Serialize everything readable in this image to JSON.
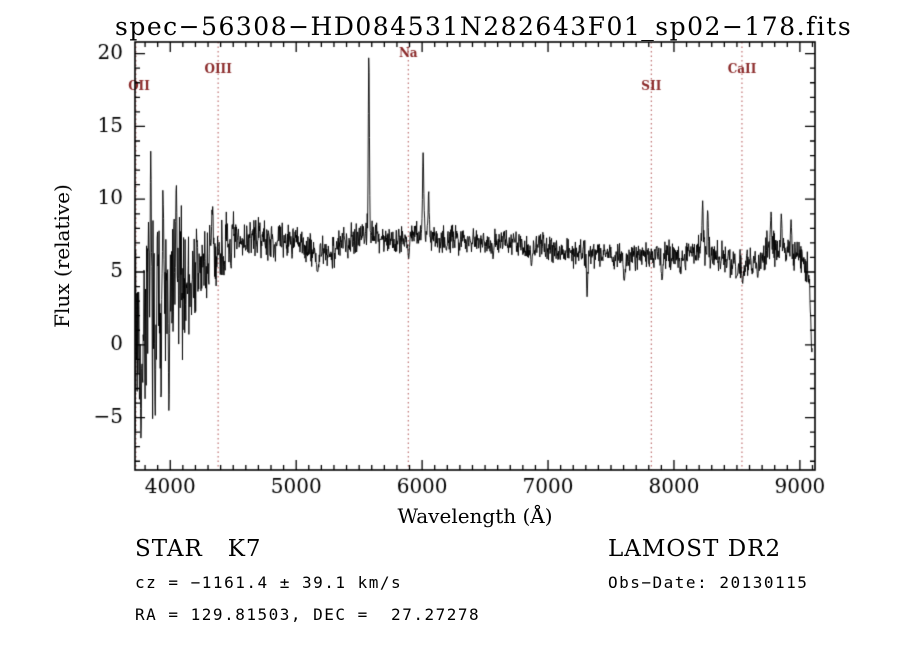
{
  "title": "spec−56308−HD084531N282643F01_sp02−178.fits",
  "annotations": {
    "class_line": "STAR   K7",
    "survey": "LAMOST DR2",
    "cz_line": "cz = −1161.4 ± 39.1 km/s",
    "obs_date": "Obs−Date: 20130115",
    "radec_line": "RA = 129.81503, DEC =  27.27278"
  },
  "chart_data": {
    "type": "line",
    "title": "spec−56308−HD084531N282643F01_sp02−178.fits",
    "xlabel": "Wavelength (Å)",
    "ylabel": "Flux (relative)",
    "xlim": [
      3720,
      9120
    ],
    "ylim": [
      -8.6,
      20.8
    ],
    "xticks": [
      4000,
      5000,
      6000,
      7000,
      8000,
      9000
    ],
    "yticks": [
      -5,
      0,
      5,
      10,
      15,
      20
    ],
    "x_minor_step": 100,
    "y_minor_step": 1,
    "grid": false,
    "line_color": "#000000",
    "axis_color": "#000000",
    "marker_line_color": "#b05050",
    "marker_label_color": "#8b2a2a",
    "marker_lines": [
      {
        "label": "OII",
        "wavelength": 3727,
        "label_flux": 17.5
      },
      {
        "label": "OIII",
        "wavelength": 4380,
        "label_flux": 18.7
      },
      {
        "label": "Na",
        "wavelength": 5890,
        "label_flux": 19.8
      },
      {
        "label": "SII",
        "wavelength": 7820,
        "label_flux": 17.5
      },
      {
        "label": "CaII",
        "wavelength": 8540,
        "label_flux": 18.7
      }
    ],
    "continuum": [
      [
        3720,
        1.2
      ],
      [
        3780,
        1.8
      ],
      [
        3850,
        2.4
      ],
      [
        3950,
        3.0
      ],
      [
        4050,
        3.8
      ],
      [
        4150,
        4.4
      ],
      [
        4250,
        5.2
      ],
      [
        4350,
        6.0
      ],
      [
        4450,
        6.6
      ],
      [
        4550,
        7.0
      ],
      [
        4650,
        7.4
      ],
      [
        4750,
        7.3
      ],
      [
        4850,
        7.0
      ],
      [
        4950,
        7.2
      ],
      [
        5050,
        6.8
      ],
      [
        5150,
        6.3
      ],
      [
        5250,
        6.2
      ],
      [
        5350,
        6.9
      ],
      [
        5450,
        7.3
      ],
      [
        5550,
        7.7
      ],
      [
        5650,
        7.4
      ],
      [
        5750,
        7.2
      ],
      [
        5850,
        7.3
      ],
      [
        5950,
        7.6
      ],
      [
        6050,
        7.6
      ],
      [
        6150,
        7.3
      ],
      [
        6250,
        7.2
      ],
      [
        6350,
        7.3
      ],
      [
        6450,
        7.2
      ],
      [
        6550,
        7.1
      ],
      [
        6650,
        7.1
      ],
      [
        6750,
        6.9
      ],
      [
        6850,
        6.6
      ],
      [
        6950,
        6.8
      ],
      [
        7050,
        6.6
      ],
      [
        7150,
        6.4
      ],
      [
        7250,
        6.4
      ],
      [
        7350,
        6.3
      ],
      [
        7450,
        6.4
      ],
      [
        7550,
        6.0
      ],
      [
        7650,
        6.0
      ],
      [
        7750,
        6.1
      ],
      [
        7850,
        6.1
      ],
      [
        7950,
        6.1
      ],
      [
        8050,
        6.2
      ],
      [
        8150,
        6.4
      ],
      [
        8250,
        6.6
      ],
      [
        8350,
        6.1
      ],
      [
        8450,
        5.6
      ],
      [
        8550,
        5.5
      ],
      [
        8650,
        5.9
      ],
      [
        8750,
        6.4
      ],
      [
        8850,
        6.6
      ],
      [
        8950,
        6.3
      ],
      [
        9030,
        5.8
      ],
      [
        9080,
        4.5
      ],
      [
        9100,
        0.5
      ]
    ],
    "noise_segments": [
      [
        3720,
        3950,
        5.2
      ],
      [
        3950,
        4150,
        4.2
      ],
      [
        4150,
        4350,
        3.0
      ],
      [
        4350,
        4550,
        1.8
      ],
      [
        4550,
        5000,
        1.0
      ],
      [
        5000,
        5600,
        0.95
      ],
      [
        5600,
        6300,
        0.8
      ],
      [
        6300,
        7200,
        0.7
      ],
      [
        7200,
        8200,
        0.8
      ],
      [
        8200,
        8700,
        0.9
      ],
      [
        8700,
        9120,
        1.1
      ]
    ],
    "spikes": [
      {
        "x": 3768,
        "y": -6.6,
        "s": 5
      },
      {
        "x": 3845,
        "y": 13.3,
        "s": 4
      },
      {
        "x": 3880,
        "y": -5.2,
        "s": 4
      },
      {
        "x": 3942,
        "y": 10.8,
        "s": 4
      },
      {
        "x": 3990,
        "y": -4.8,
        "s": 4
      },
      {
        "x": 4048,
        "y": 11.2,
        "s": 4
      },
      {
        "x": 4337,
        "y": 9.5,
        "s": 4
      },
      {
        "x": 5170,
        "y": 5.0,
        "s": 8
      },
      {
        "x": 5577,
        "y": 20.0,
        "s": 4.5
      },
      {
        "x": 5893,
        "y": 5.9,
        "s": 6
      },
      {
        "x": 6008,
        "y": 13.2,
        "s": 5
      },
      {
        "x": 6052,
        "y": 10.6,
        "s": 4
      },
      {
        "x": 6563,
        "y": 5.9,
        "s": 5
      },
      {
        "x": 6868,
        "y": 5.4,
        "s": 6
      },
      {
        "x": 7310,
        "y": 3.3,
        "s": 5
      },
      {
        "x": 7605,
        "y": 4.4,
        "s": 7
      },
      {
        "x": 7905,
        "y": 4.4,
        "s": 5
      },
      {
        "x": 8055,
        "y": 4.8,
        "s": 4
      },
      {
        "x": 8228,
        "y": 9.9,
        "s": 4
      },
      {
        "x": 8268,
        "y": 9.3,
        "s": 4
      },
      {
        "x": 8502,
        "y": 4.7,
        "s": 5
      },
      {
        "x": 8545,
        "y": 4.2,
        "s": 5
      },
      {
        "x": 8665,
        "y": 4.6,
        "s": 5
      },
      {
        "x": 8772,
        "y": 9.2,
        "s": 4
      },
      {
        "x": 8852,
        "y": 9.0,
        "s": 4
      },
      {
        "x": 8930,
        "y": 8.6,
        "s": 4
      },
      {
        "x": 9095,
        "y": -0.5,
        "s": 6
      }
    ],
    "sample_step": 3,
    "seed": 7
  }
}
